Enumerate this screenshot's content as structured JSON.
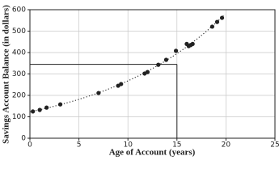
{
  "chart_data": {
    "type": "scatter",
    "x_label": "Age of Account (years)",
    "y_label": "Savings Account Balance (in dollars)",
    "x": [
      0.3,
      1,
      1.7,
      3.1,
      7,
      9,
      9.3,
      11.7,
      12,
      13.1,
      13.9,
      14.9,
      16,
      16.2,
      16.4,
      16.6,
      18.6,
      19.1,
      19.6
    ],
    "values": [
      125,
      132,
      143,
      158,
      211,
      245,
      253,
      302,
      309,
      343,
      366,
      408,
      440,
      430,
      435,
      440,
      521,
      543,
      562
    ],
    "color": "#222222",
    "xlim": [
      0,
      25
    ],
    "xticks": [
      0,
      5,
      10,
      15,
      20,
      25
    ],
    "ylim": [
      0,
      600
    ],
    "yticks": [
      0,
      100,
      200,
      300,
      400,
      500,
      600
    ],
    "grid": true,
    "trendline": "exponential",
    "reference": {
      "x": 15,
      "y": 345
    }
  }
}
